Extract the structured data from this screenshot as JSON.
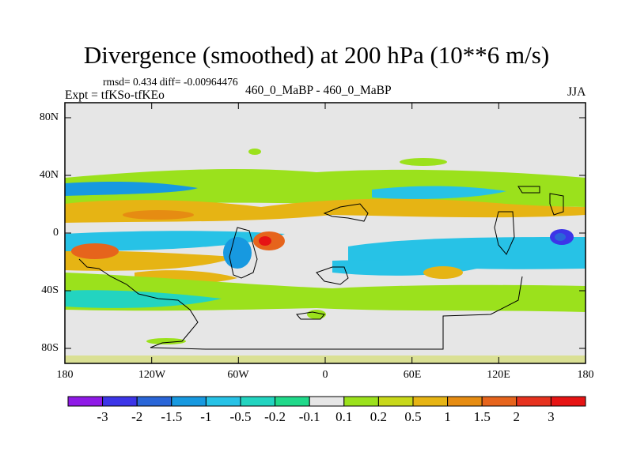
{
  "title": "Divergence (smoothed) at 200 hPa (10**6 m/s)",
  "stats": "rmsd= 0.434 diff= -0.00964476",
  "expt": "Expt = tfKSo-tfKEo",
  "diff_label": "460_0_MaBP - 460_0_MaBP",
  "season": "JJA",
  "lat_ticks": [
    "80N",
    "40N",
    "0",
    "40S",
    "80S"
  ],
  "lon_ticks": [
    "180",
    "120W",
    "60W",
    "0",
    "60E",
    "120E",
    "180"
  ],
  "colorbar": {
    "labels": [
      "-3",
      "-2",
      "-1.5",
      "-1",
      "-0.5",
      "-0.2",
      "-0.1",
      "0.1",
      "0.2",
      "0.5",
      "1",
      "1.5",
      "2",
      "3"
    ],
    "colors": [
      "#8f1ae6",
      "#3c35e8",
      "#2a66d8",
      "#1799e0",
      "#27c2e6",
      "#23d4c0",
      "#20d98a",
      "#e6e6e6",
      "#9be11c",
      "#c8d81a",
      "#e6b414",
      "#e68c12",
      "#e6641c",
      "#e6321e",
      "#e61414"
    ]
  }
}
